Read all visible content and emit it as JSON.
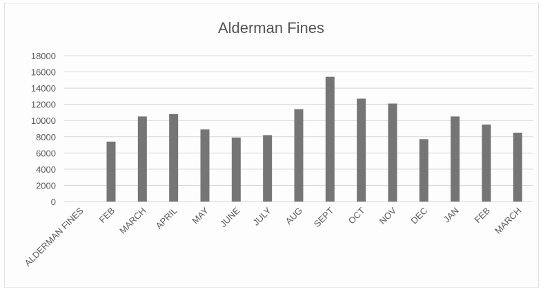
{
  "chart_data": {
    "type": "bar",
    "title": "Alderman Fines",
    "xlabel": "",
    "ylabel": "",
    "categories": [
      "ALDERMAN FINES",
      "FEB",
      "MARCH",
      "APRIL",
      "MAY",
      "JUNE",
      "JULY",
      "AUG",
      "SEPT",
      "OCT",
      "NOV",
      "DEC",
      "JAN",
      "FEB",
      "MARCH"
    ],
    "values": [
      null,
      7400,
      10500,
      10800,
      8900,
      7900,
      8200,
      11400,
      15400,
      12700,
      12100,
      7700,
      10500,
      9500,
      8500
    ],
    "ylim": [
      0,
      18000
    ],
    "yticks": [
      0,
      2000,
      4000,
      6000,
      8000,
      10000,
      12000,
      14000,
      16000,
      18000
    ],
    "grid": true,
    "legend": "none",
    "bar_color": "#757575",
    "grid_color": "#d6d6d6"
  }
}
